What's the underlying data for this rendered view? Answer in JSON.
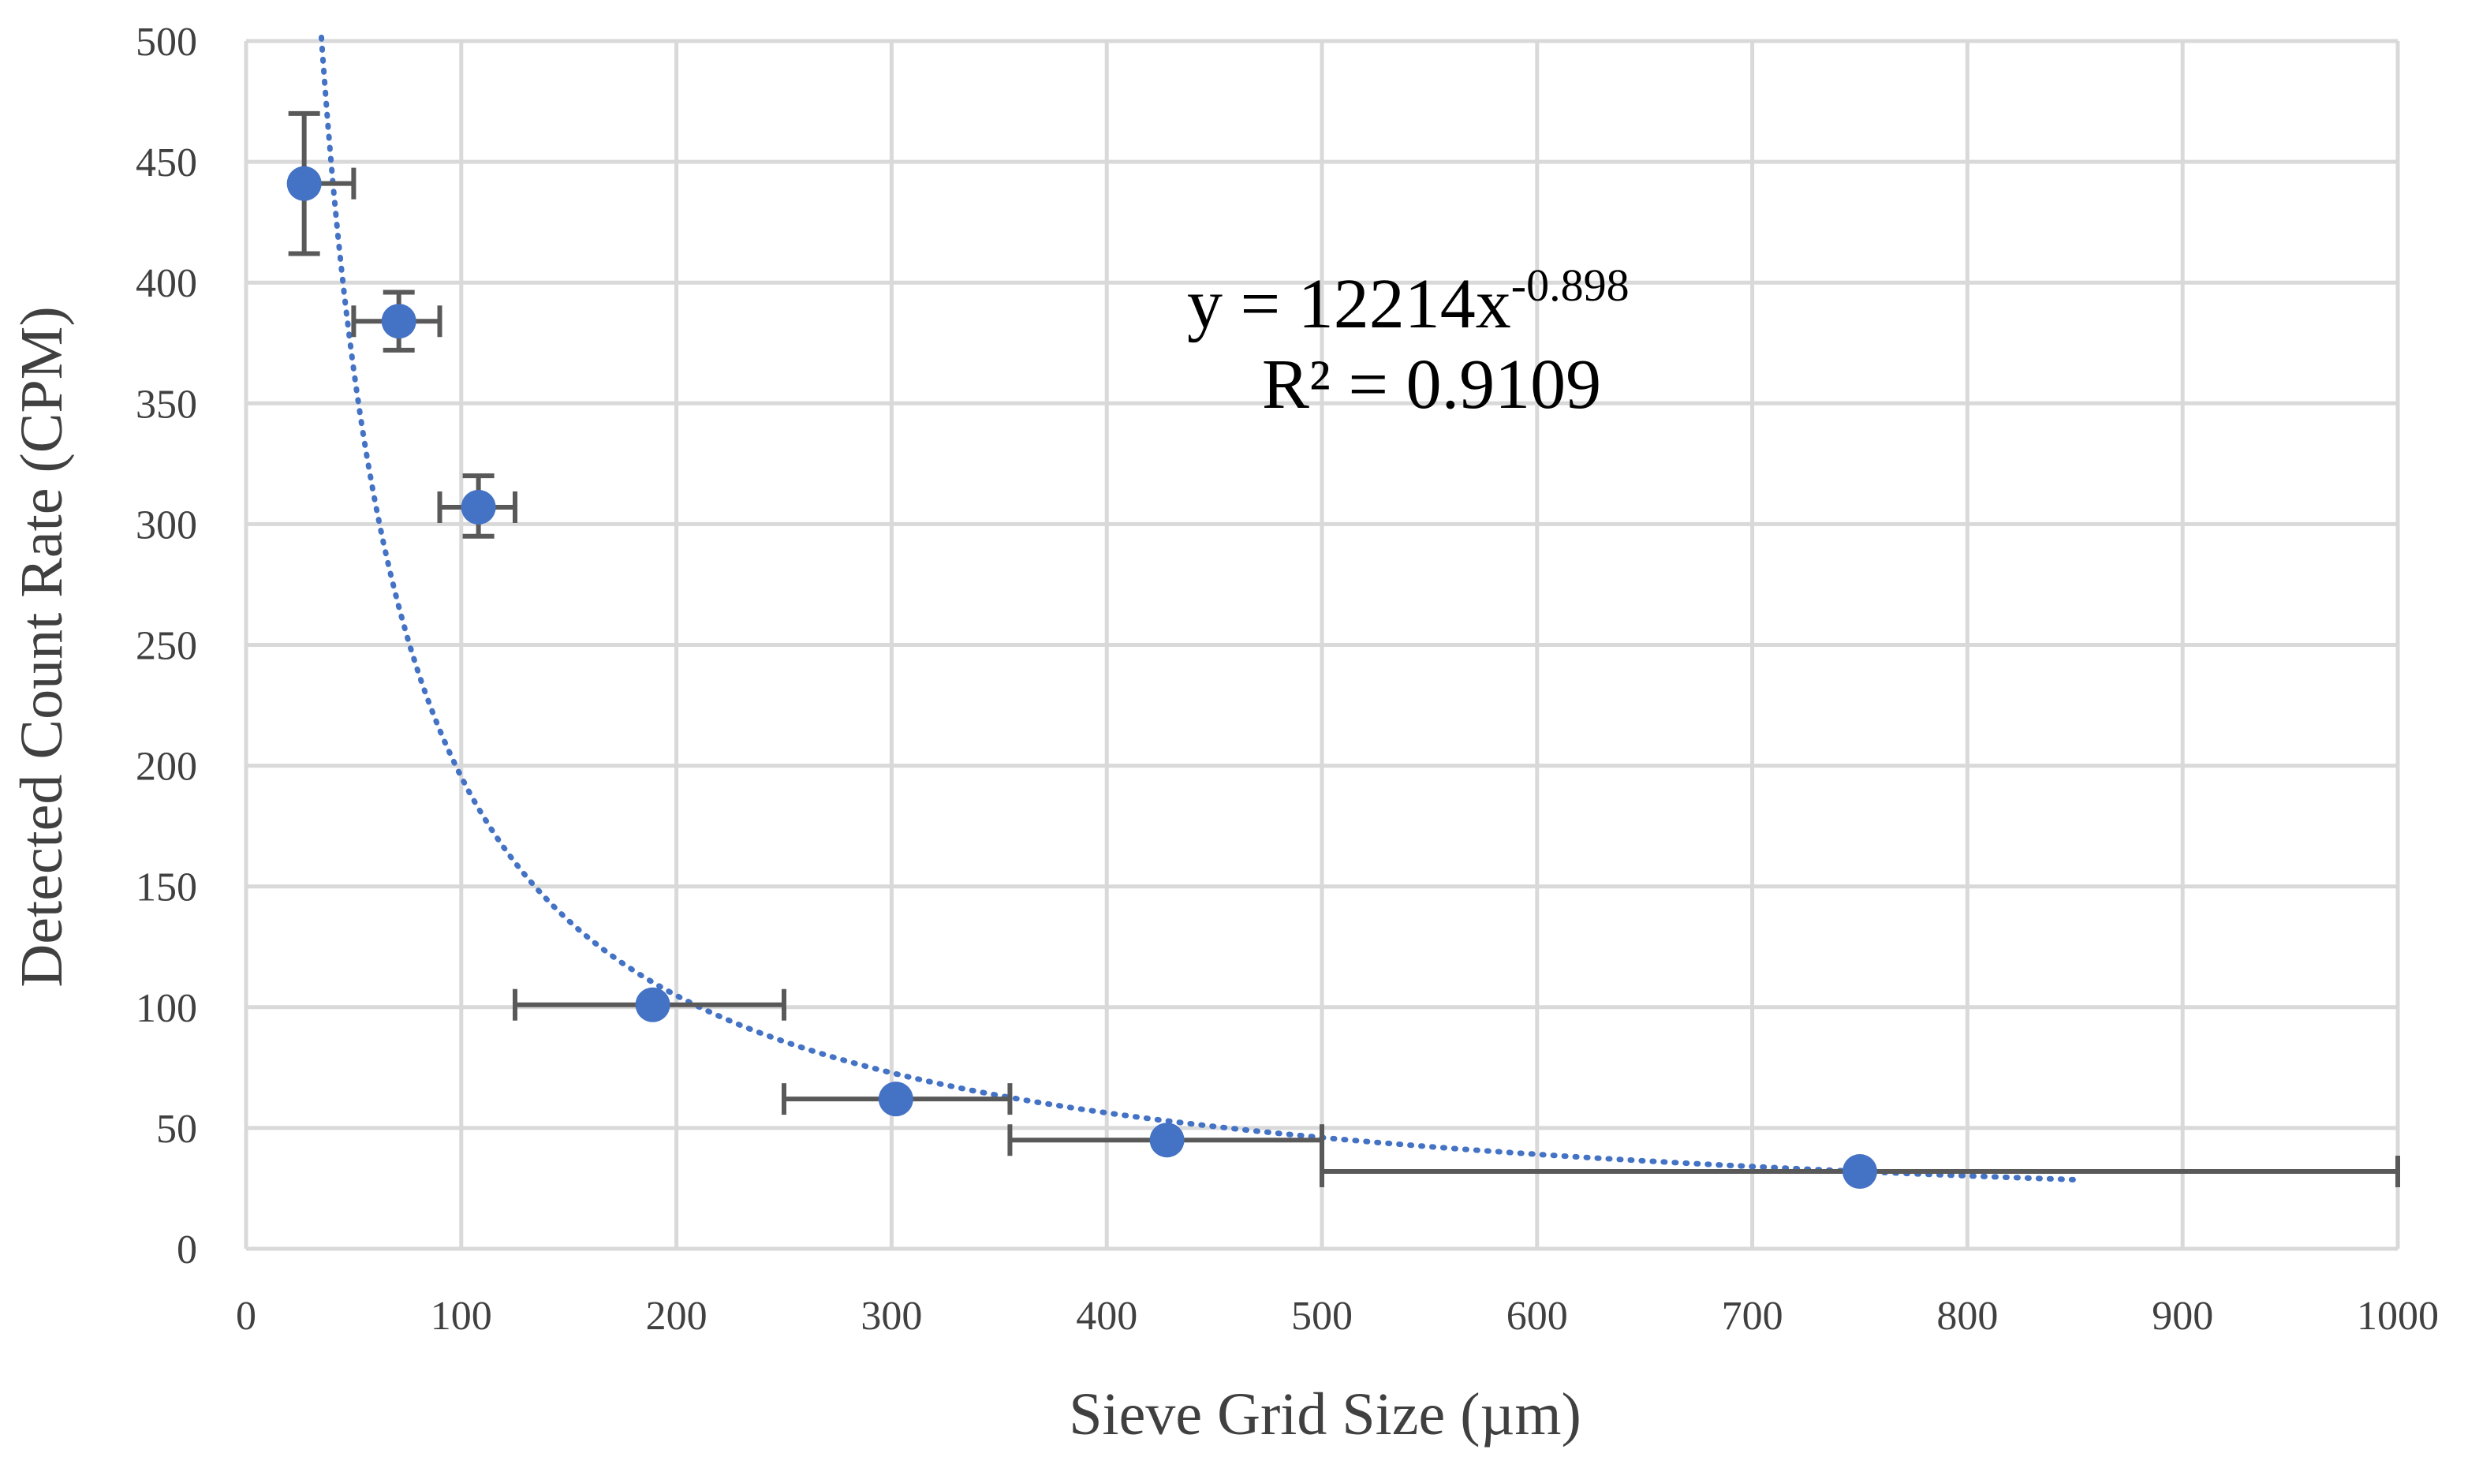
{
  "chart_data": {
    "type": "scatter",
    "title": "",
    "xlabel": "Sieve Grid Size (µm)",
    "ylabel": "Detected Count Rate (CPM)",
    "xlim": [
      0,
      1000
    ],
    "ylim": [
      0,
      500
    ],
    "xticks": [
      0,
      100,
      200,
      300,
      400,
      500,
      600,
      700,
      800,
      900,
      1000
    ],
    "yticks": [
      0,
      50,
      100,
      150,
      200,
      250,
      300,
      350,
      400,
      450,
      500
    ],
    "grid": true,
    "legend": "none",
    "points": [
      {
        "x": 27,
        "y": 441,
        "xerr": [
          27,
          50
        ],
        "yerr": [
          412,
          470
        ]
      },
      {
        "x": 71,
        "y": 384,
        "xerr": [
          50,
          90
        ],
        "yerr": [
          372,
          396
        ]
      },
      {
        "x": 108,
        "y": 307,
        "xerr": [
          90,
          125
        ],
        "yerr": [
          295,
          320
        ]
      },
      {
        "x": 189,
        "y": 101,
        "xerr": [
          125,
          250
        ],
        "yerr": [
          101,
          101
        ]
      },
      {
        "x": 302,
        "y": 62,
        "xerr": [
          250,
          355
        ],
        "yerr": [
          62,
          62
        ]
      },
      {
        "x": 428,
        "y": 45,
        "xerr": [
          355,
          500
        ],
        "yerr": [
          45,
          45
        ]
      },
      {
        "x": 750,
        "y": 32,
        "xerr": [
          500,
          1000
        ],
        "yerr": [
          32,
          32
        ]
      }
    ],
    "trendline": {
      "type": "power",
      "coefficient": 12214,
      "exponent": -0.898,
      "x_range": [
        35,
        850
      ],
      "equation_main": "y = 12214x",
      "equation_exponent": "-0.898",
      "r_squared": "R² = 0.9109"
    },
    "colors": {
      "marker": "#4472C4",
      "trendline": "#4472C4",
      "error_bar": "#595959",
      "grid": "#D9D9D9"
    }
  }
}
